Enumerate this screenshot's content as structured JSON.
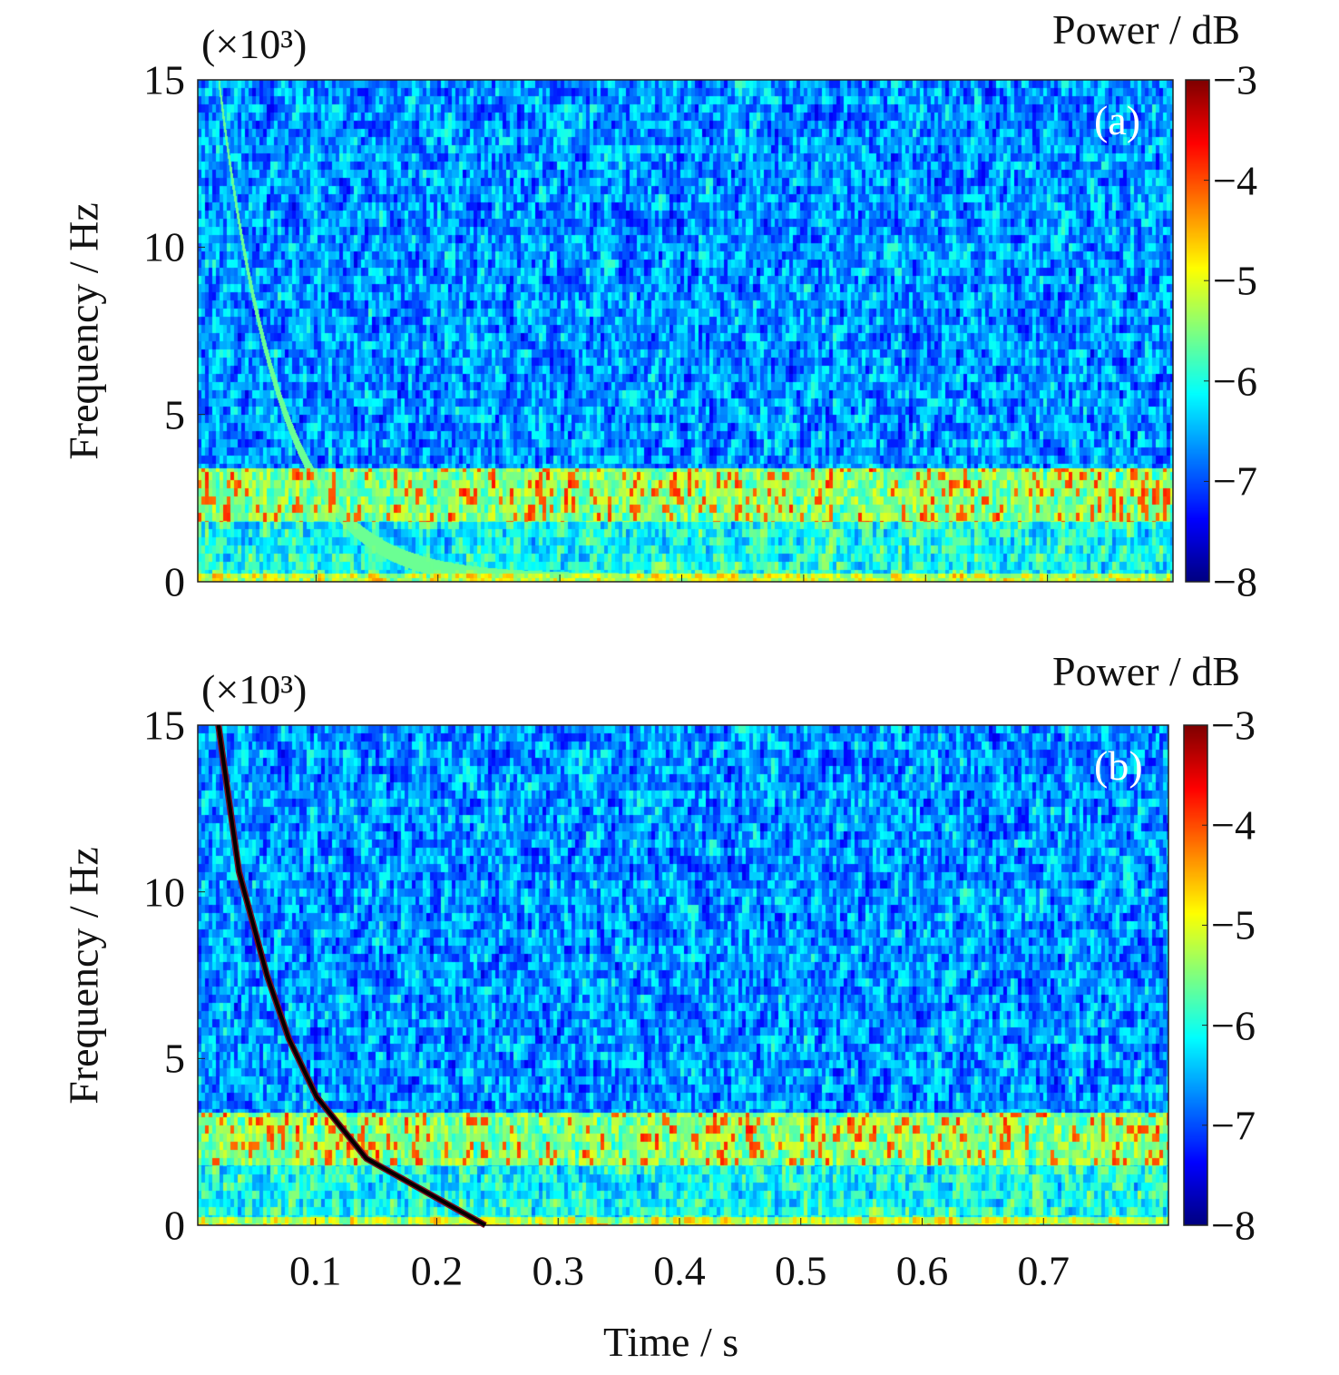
{
  "chart_data": [
    {
      "type": "heatmap",
      "panel_label": "(a)",
      "ylabel": "Frequency / Hz",
      "y_multiplier": "(×10³)",
      "yticks": [
        "0",
        "5",
        "10",
        "15"
      ],
      "ylim": [
        0,
        15
      ],
      "xlim": [
        0,
        0.8
      ],
      "colorbar": {
        "label": "Power / dB",
        "ticks": [
          "−3",
          "−4",
          "−5",
          "−6",
          "−7",
          "−8"
        ],
        "range": [
          -8,
          -3
        ],
        "colormap": "jet"
      },
      "features": {
        "band_khz": [
          1.8,
          3.4
        ],
        "band_peak_db": -4,
        "background_db": -7,
        "faint_chirp": true
      }
    },
    {
      "type": "heatmap",
      "panel_label": "(b)",
      "ylabel": "Frequency / Hz",
      "y_multiplier": "(×10³)",
      "yticks": [
        "0",
        "5",
        "10",
        "15"
      ],
      "ylim": [
        0,
        15
      ],
      "xlim": [
        0,
        0.8
      ],
      "xlabel": "Time / s",
      "xticks": [
        "0.1",
        "0.2",
        "0.3",
        "0.4",
        "0.5",
        "0.6",
        "0.7"
      ],
      "colorbar": {
        "label": "Power / dB",
        "ticks": [
          "−3",
          "−4",
          "−5",
          "−6",
          "−7",
          "−8"
        ],
        "range": [
          -8,
          -3
        ],
        "colormap": "jet"
      },
      "overlay_curve": {
        "t": [
          0.017,
          0.034,
          0.057,
          0.075,
          0.098,
          0.139,
          0.237
        ],
        "f_khz": [
          15,
          10.6,
          7.5,
          5.6,
          3.85,
          2.0,
          0
        ]
      }
    }
  ]
}
